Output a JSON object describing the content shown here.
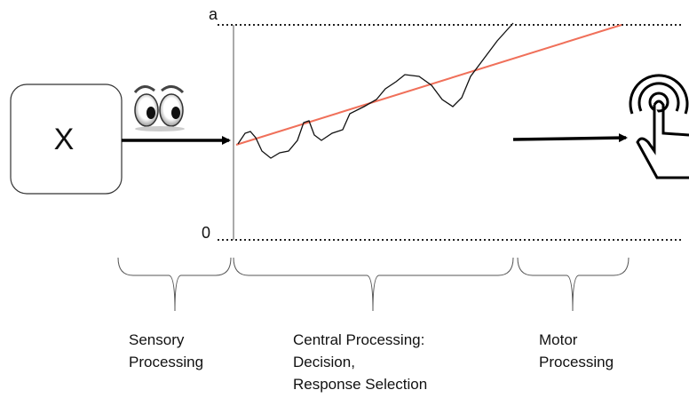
{
  "stimulus": {
    "label": "X"
  },
  "thresholds": {
    "upper": "a",
    "lower": "0"
  },
  "stages": [
    {
      "lines": [
        "Sensory",
        "Processing"
      ]
    },
    {
      "lines": [
        "Central Processing:",
        "Decision,",
        "Response Selection"
      ]
    },
    {
      "lines": [
        "Motor",
        "Processing"
      ]
    }
  ]
}
